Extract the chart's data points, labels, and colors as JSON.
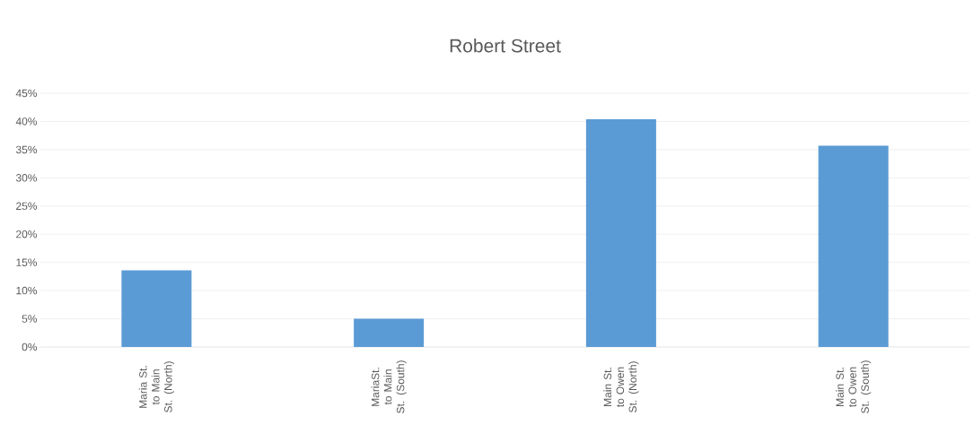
{
  "chart_data": {
    "type": "bar",
    "title": "Robert Street",
    "categories": [
      "Maria St. to Main St. (North)",
      "MariaSt. to Main St. (South)",
      "Main St. to Owen St. (North)",
      "Main St. to Owen St. (South)"
    ],
    "values": [
      13.6,
      5.0,
      40.4,
      35.7
    ],
    "color": "#5b9bd5",
    "ylim": [
      0,
      45
    ],
    "yticks": [
      {
        "value": 0,
        "label": "0%"
      },
      {
        "value": 5,
        "label": "5%"
      },
      {
        "value": 10,
        "label": "10%"
      },
      {
        "value": 15,
        "label": "15%"
      },
      {
        "value": 20,
        "label": "20%"
      },
      {
        "value": 25,
        "label": "25%"
      },
      {
        "value": 30,
        "label": "30%"
      },
      {
        "value": 35,
        "label": "35%"
      },
      {
        "value": 40,
        "label": "40%"
      },
      {
        "value": 45,
        "label": "45%"
      }
    ],
    "grid": "y"
  }
}
